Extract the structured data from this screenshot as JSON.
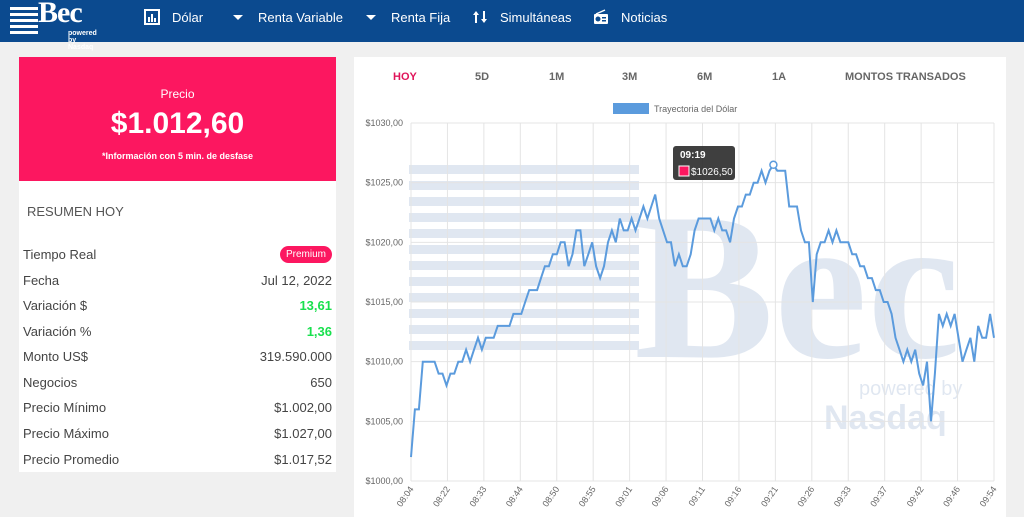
{
  "header": {
    "logo_text": "Bec",
    "logo_sub": "powered by Nasdaq",
    "nav": [
      {
        "label": "Dólar",
        "icon": "chart-icon"
      },
      {
        "label": "Renta Variable",
        "icon": "chevron-down-icon"
      },
      {
        "label": "Renta Fija",
        "icon": "chevron-down-icon"
      },
      {
        "label": "Simultáneas",
        "icon": "arrows-updown-icon"
      },
      {
        "label": "Noticias",
        "icon": "radio-icon"
      }
    ],
    "colors": {
      "bar": "#0b4a8f",
      "accent": "#fc1760",
      "up": "#19e04e"
    }
  },
  "price_card": {
    "label": "Precio",
    "value": "$1.012,60",
    "note": "*Información con 5 min. de desfase"
  },
  "summary": {
    "title": "RESUMEN HOY",
    "premium_badge": "Premium",
    "rows": [
      {
        "key": "Tiempo Real",
        "value": ""
      },
      {
        "key": "Fecha",
        "value": "Jul 12, 2022"
      },
      {
        "key": "Variación $",
        "value": "13,61"
      },
      {
        "key": "Variación %",
        "value": "1,36"
      },
      {
        "key": "Monto US$",
        "value": "319.590.000"
      },
      {
        "key": "Negocios",
        "value": "650"
      },
      {
        "key": "Precio Mínimo",
        "value": "$1.002,00"
      },
      {
        "key": "Precio Máximo",
        "value": "$1.027,00"
      },
      {
        "key": "Precio Promedio",
        "value": "$1.017,52"
      }
    ]
  },
  "tabs": [
    "HOY",
    "5D",
    "1M",
    "3M",
    "6M",
    "1A",
    "MONTOS TRANSADOS"
  ],
  "active_tab": "HOY",
  "chart_data": {
    "type": "line",
    "legend": "Trayectoria del Dólar",
    "legend_position": "top",
    "line_color": "#5b9bdd",
    "grid": true,
    "yticks": [
      "$1000,00",
      "$1005,00",
      "$1010,00",
      "$1015,00",
      "$1020,00",
      "$1025,00",
      "$1030,00"
    ],
    "ylim": [
      1000,
      1030
    ],
    "xticks": [
      "08:04",
      "08:22",
      "08:33",
      "08:44",
      "08:50",
      "08:55",
      "09:01",
      "09:06",
      "09:11",
      "09:16",
      "09:21",
      "09:26",
      "09:33",
      "09:37",
      "09:42",
      "09:46",
      "09:54"
    ],
    "tooltip": {
      "time": "09:19",
      "value": "$1026,50"
    },
    "values": [
      1002,
      1006,
      1006,
      1010,
      1010,
      1010,
      1010,
      1009,
      1009,
      1008,
      1009,
      1009,
      1010,
      1010,
      1011,
      1010,
      1011,
      1012,
      1011,
      1012,
      1012,
      1012,
      1013,
      1013,
      1013,
      1013,
      1014,
      1014,
      1014,
      1015,
      1016,
      1016,
      1016,
      1017,
      1018,
      1018,
      1019,
      1019,
      1020,
      1020,
      1018,
      1019,
      1021,
      1021,
      1018,
      1019,
      1020,
      1018,
      1017,
      1018,
      1020,
      1021,
      1020,
      1022,
      1021,
      1021,
      1022,
      1021,
      1022,
      1023,
      1022,
      1023,
      1024,
      1022,
      1021,
      1020,
      1020,
      1018,
      1019,
      1018,
      1018,
      1019,
      1021,
      1022,
      1022,
      1022,
      1022,
      1021,
      1022,
      1021,
      1021,
      1020,
      1022,
      1023,
      1023,
      1024,
      1024,
      1025,
      1025,
      1026,
      1025,
      1026,
      1026.5,
      1026,
      1026,
      1026,
      1023,
      1023,
      1023,
      1021,
      1020,
      1020,
      1015,
      1019,
      1020,
      1020,
      1021,
      1020,
      1021,
      1020,
      1020,
      1020,
      1019,
      1019,
      1018,
      1018,
      1017,
      1017,
      1016,
      1016,
      1015,
      1015,
      1014,
      1012,
      1011,
      1010,
      1011,
      1010,
      1011,
      1009,
      1008,
      1010,
      1005,
      1009,
      1014,
      1013,
      1014,
      1013,
      1014,
      1012,
      1010,
      1011,
      1012,
      1010,
      1013,
      1012,
      1012,
      1014,
      1012
    ]
  }
}
